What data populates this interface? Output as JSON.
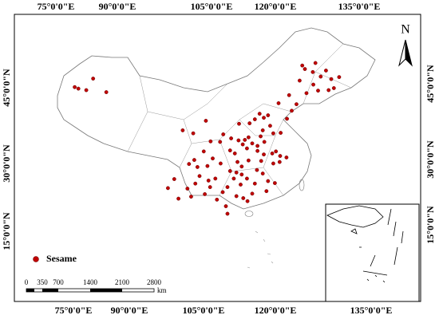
{
  "map": {
    "lon_labels_top": [
      "75°0'0\"E",
      "90°0'0\"E",
      "105°0'0\"E",
      "120°0'0\"E",
      "135°0'0\"E"
    ],
    "lon_labels_bottom": [
      "75°0'0\"E",
      "90°0'0\"E",
      "105°0'0\"E",
      "120°0'0\"E",
      "135°0'0\"E"
    ],
    "lat_labels_left": [
      "45°0'0\"N",
      "30°0'0\"N",
      "15°0'0\"N"
    ],
    "lat_labels_right": [
      "45°0'0\"N",
      "30°0'0\"N",
      "15°0'0\"N"
    ],
    "north": "N",
    "legend": "Sesame",
    "scale_labels": [
      "0",
      "350",
      "700",
      "1400",
      "2100",
      "2800"
    ],
    "scale_unit": "km",
    "points": [
      [
        81.3,
        45.2
      ],
      [
        82,
        44.9
      ],
      [
        83.5,
        44.6
      ],
      [
        84.8,
        46.9
      ],
      [
        87.3,
        44.2
      ],
      [
        124.5,
        49.5
      ],
      [
        126.5,
        48.2
      ],
      [
        128,
        47.3
      ],
      [
        130,
        46.8
      ],
      [
        131.5,
        47.2
      ],
      [
        126.6,
        45.7
      ],
      [
        125.3,
        44
      ],
      [
        123.4,
        41.8
      ],
      [
        122,
        43.6
      ],
      [
        127.5,
        44.5
      ],
      [
        129.5,
        44.6
      ],
      [
        121.6,
        38.9
      ],
      [
        124,
        46.5
      ],
      [
        125,
        48.8
      ],
      [
        127,
        50
      ],
      [
        129,
        48.5
      ],
      [
        122.5,
        40.5
      ],
      [
        120,
        42
      ],
      [
        130.5,
        45
      ],
      [
        116.4,
        39.9
      ],
      [
        117.2,
        39.1
      ],
      [
        114.5,
        38
      ],
      [
        112.5,
        37.9
      ],
      [
        115.5,
        38.8
      ],
      [
        118,
        39.6
      ],
      [
        113.6,
        34.7
      ],
      [
        114.3,
        35.2
      ],
      [
        115,
        34
      ],
      [
        116,
        33.5
      ],
      [
        112.4,
        34.6
      ],
      [
        114,
        33
      ],
      [
        117,
        36.6
      ],
      [
        118.4,
        37.5
      ],
      [
        119,
        36
      ],
      [
        120.4,
        36.1
      ],
      [
        117.3,
        34.3
      ],
      [
        116.6,
        35.4
      ],
      [
        118.8,
        32
      ],
      [
        117.2,
        31.8
      ],
      [
        116,
        32.5
      ],
      [
        119.5,
        32.4
      ],
      [
        120.3,
        31.5
      ],
      [
        121.5,
        31.2
      ],
      [
        120.2,
        30.3
      ],
      [
        119,
        30
      ],
      [
        116.7,
        30.5
      ],
      [
        115.9,
        28.7
      ],
      [
        114.3,
        30.6
      ],
      [
        112.2,
        30.3
      ],
      [
        113,
        29.4
      ],
      [
        111.7,
        32
      ],
      [
        110.8,
        32.6
      ],
      [
        108.9,
        34.3
      ],
      [
        107.1,
        34.4
      ],
      [
        109.5,
        35.8
      ],
      [
        111,
        35
      ],
      [
        113.2,
        33.8
      ],
      [
        112,
        28.2
      ],
      [
        113,
        27.8
      ],
      [
        111.5,
        27
      ],
      [
        114,
        27
      ],
      [
        115.5,
        26
      ],
      [
        117,
        28
      ],
      [
        118,
        26.5
      ],
      [
        119.3,
        26.1
      ],
      [
        117.7,
        24.5
      ],
      [
        113.3,
        23.1
      ],
      [
        114.1,
        22.5
      ],
      [
        112,
        23.5
      ],
      [
        110.3,
        25.3
      ],
      [
        108.3,
        22.8
      ],
      [
        109.4,
        24.3
      ],
      [
        107,
        25.3
      ],
      [
        106.7,
        26.6
      ],
      [
        105,
        27.5
      ],
      [
        104,
        30.7
      ],
      [
        104.6,
        29.3
      ],
      [
        106.5,
        29.5
      ],
      [
        107.5,
        31
      ],
      [
        105.8,
        32.4
      ],
      [
        103,
        29.9
      ],
      [
        102.7,
        25
      ],
      [
        101,
        23
      ],
      [
        103.4,
        23.4
      ],
      [
        104.2,
        26
      ],
      [
        106,
        23.9
      ],
      [
        110,
        21.5
      ],
      [
        110.3,
        20
      ],
      [
        100.2,
        26.9
      ],
      [
        99,
        25.1
      ],
      [
        103.8,
        36
      ],
      [
        106.2,
        38.5
      ],
      [
        101.8,
        36.6
      ],
      [
        110.8,
        28.5
      ],
      [
        112.8,
        25.8
      ],
      [
        115,
        24
      ],
      [
        109,
        30
      ],
      [
        108,
        27
      ]
    ]
  }
}
